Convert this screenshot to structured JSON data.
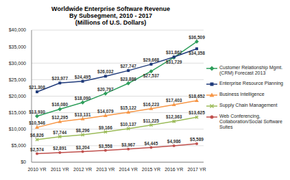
{
  "chart_data": {
    "type": "line",
    "title": "Worldwide Enterprise Software Revenue",
    "subtitle": [
      "By Subsegment, 2010 - 2017",
      "(Millions of U.S. Dollars)"
    ],
    "categories": [
      "2010 YR",
      "2011 YR",
      "2012 YR",
      "2013 YR",
      "2014 YR",
      "2015 YR",
      "2016 YR",
      "2017 YR"
    ],
    "ylim": [
      0,
      40000
    ],
    "yticks": [
      {
        "value": 0,
        "label": "$0"
      },
      {
        "value": 5000,
        "label": "$5,000"
      },
      {
        "value": 10000,
        "label": "$10,000"
      },
      {
        "value": 15000,
        "label": "$15,000"
      },
      {
        "value": 20000,
        "label": "$20,000"
      },
      {
        "value": 25000,
        "label": "$25,000"
      },
      {
        "value": 30000,
        "label": "$30,000"
      },
      {
        "value": 35000,
        "label": "$35,000"
      },
      {
        "value": 40000,
        "label": "$40,000"
      }
    ],
    "grid": true,
    "legend": "right",
    "data_labels": true,
    "series": [
      {
        "name": "Customer Relationship Mgmt. (CRM) Forecast 2013",
        "color": "#2e9e5b",
        "marker": "diamond",
        "values": [
          13930,
          16080,
          18090,
          20797,
          23886,
          27537,
          31729,
          36509
        ],
        "value_labels": [
          "$13,930",
          "$16,080",
          "$18,090",
          "$20,797",
          "$23,886",
          "$27,537",
          "$31,729",
          "$36,509"
        ]
      },
      {
        "name": "Enterprise Resource Planning",
        "color": "#1f3a7a",
        "marker": "square",
        "values": [
          21308,
          23977,
          24495,
          26032,
          27747,
          29668,
          31862,
          34358
        ],
        "value_labels": [
          "$21,308",
          "$23,977",
          "$24,495",
          "$26,032",
          "$27,747",
          "$29,668",
          "$31,862",
          "$34,358"
        ]
      },
      {
        "name": "Business Intelligence",
        "color": "#f79646",
        "marker": "triangle",
        "values": [
          10546,
          12295,
          13131,
          14079,
          15122,
          16223,
          17403,
          18652
        ],
        "value_labels": [
          "$10,546",
          "$12,295",
          "$13,131",
          "$14,079",
          "$15,122",
          "$16,223",
          "$17,403",
          "$18,652"
        ]
      },
      {
        "name": "Supply Chain Management",
        "color": "#9bbb59",
        "marker": "x",
        "values": [
          6826,
          7744,
          8296,
          9166,
          10137,
          11225,
          12363,
          13625
        ],
        "value_labels": [
          "$6,826",
          "$7,744",
          "$8,296",
          "$9,166",
          "$10,137",
          "$11,225",
          "$12,363",
          "$13,625"
        ]
      },
      {
        "name": "Web Conferencing, Collaboration/Social Software Suites",
        "color": "#c0504d",
        "marker": "circle",
        "values": [
          2574,
          2891,
          3204,
          3558,
          3967,
          4445,
          4986,
          5589
        ],
        "value_labels": [
          "$2,574",
          "$2,891",
          "$3,204",
          "$3,558",
          "$3,967",
          "$4,445",
          "$4,986",
          "$5,589"
        ]
      }
    ]
  }
}
